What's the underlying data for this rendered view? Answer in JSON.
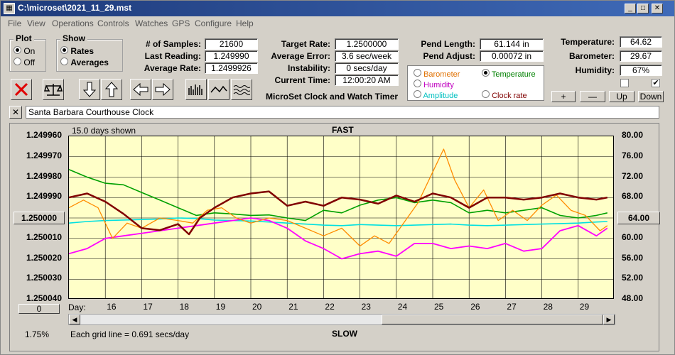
{
  "window": {
    "title": "C:\\microset\\2021_11_29.mst"
  },
  "menu": [
    "File",
    "View",
    "Operations",
    "Controls",
    "Watches",
    "GPS",
    "Configure",
    "Help"
  ],
  "plot_group": {
    "title": "Plot",
    "options": [
      {
        "label": "On",
        "selected": true
      },
      {
        "label": "Off",
        "selected": false
      }
    ]
  },
  "show_group": {
    "title": "Show",
    "options": [
      {
        "label": "Rates",
        "selected": true
      },
      {
        "label": "Averages",
        "selected": false
      }
    ]
  },
  "stats": {
    "samples": {
      "label": "# of Samples:",
      "value": "21600"
    },
    "last_reading": {
      "label": "Last Reading:",
      "value": "1.249990"
    },
    "average_rate": {
      "label": "Average Rate:",
      "value": "1.2499926"
    },
    "target_rate": {
      "label": "Target Rate:",
      "value": "1.2500000"
    },
    "average_error": {
      "label": "Average Error:",
      "value": "3.6 sec/week"
    },
    "instability": {
      "label": "Instability:",
      "value": "0 secs/day"
    },
    "current_time": {
      "label": "Current Time:",
      "value": "12:00:20 AM"
    },
    "pend_length": {
      "label": "Pend Length:",
      "value": "61.144 in"
    },
    "pend_adjust": {
      "label": "Pend Adjust:",
      "value": "0.00072 in"
    },
    "temperature": {
      "label": "Temperature:",
      "value": "64.62"
    },
    "barometer": {
      "label": "Barometer:",
      "value": "29.67"
    },
    "humidity": {
      "label": "Humidity:",
      "value": "67%"
    }
  },
  "app_label": "MicroSet Clock and Watch Timer",
  "series_select": [
    {
      "label": "Barometer",
      "color": "#e07000",
      "selected": false
    },
    {
      "label": "Temperature",
      "color": "#008000",
      "selected": true
    },
    {
      "label": "Humidity",
      "color": "#c000c0",
      "selected": false
    },
    {
      "label": "Clock rate",
      "color": "#800000",
      "selected": false
    },
    {
      "label": "Amplitude",
      "color": "#00c0c0",
      "selected": false
    }
  ],
  "side_buttons": {
    "plus": "+",
    "minus": "—",
    "up": "Up",
    "down": "Down"
  },
  "checkboxes": [
    {
      "checked": false
    },
    {
      "checked": true
    }
  ],
  "clock_name": "Santa Barbara Courthouse Clock",
  "close_glyph": "✕",
  "chart_header": {
    "days_shown": "15.0 days shown",
    "top": "FAST",
    "bottom": "SLOW",
    "grid_note": "Each grid line = 0.691 secs/day",
    "zoom": "1.75%",
    "day_label": "Day:"
  },
  "left_value_button": "1.250000",
  "right_value_button": "64.00",
  "left_zero_button": "0",
  "colors": {
    "plot_bg": "#ffffc8",
    "rate": "#800000",
    "temperature": "#00a000",
    "barometer": "#ff8c00",
    "humidity": "#ff00ff",
    "amplitude": "#00e0e0"
  },
  "chart_data": {
    "type": "line",
    "title": "",
    "y_left_ticks": [
      "1.249960",
      "1.249970",
      "1.249980",
      "1.249990",
      "1.250000",
      "1.250010",
      "1.250020",
      "1.250030",
      "1.250040"
    ],
    "y_right_ticks": [
      "80.00",
      "76.00",
      "72.00",
      "68.00",
      "64.00",
      "60.00",
      "56.00",
      "52.00",
      "48.00"
    ],
    "x_ticks": [
      "16",
      "17",
      "18",
      "19",
      "20",
      "21",
      "22",
      "23",
      "24",
      "25",
      "26",
      "27",
      "28",
      "29"
    ],
    "x_range": [
      15.0,
      30.0
    ],
    "y_left_range": [
      1.24996,
      1.25004
    ],
    "y_right_range": [
      48,
      80
    ],
    "series": [
      {
        "key": "rate",
        "axis": "left",
        "x": [
          15.0,
          15.5,
          16.0,
          16.5,
          17.0,
          17.5,
          18.0,
          18.3,
          18.6,
          19.0,
          19.5,
          20.0,
          20.5,
          21.0,
          21.5,
          22.0,
          22.5,
          23.0,
          23.5,
          24.0,
          24.5,
          25.0,
          25.5,
          26.0,
          26.5,
          27.0,
          27.5,
          28.0,
          28.5,
          29.0,
          29.5,
          29.8
        ],
        "y": [
          1.24999,
          1.249988,
          1.249992,
          1.249998,
          1.250005,
          1.250006,
          1.250003,
          1.250008,
          1.25,
          1.249995,
          1.24999,
          1.249988,
          1.249987,
          1.249994,
          1.249992,
          1.249994,
          1.24999,
          1.249991,
          1.249993,
          1.249989,
          1.249992,
          1.249988,
          1.24999,
          1.249995,
          1.24999,
          1.24999,
          1.249991,
          1.24999,
          1.249988,
          1.24999,
          1.249991,
          1.24999
        ]
      },
      {
        "key": "temperature",
        "axis": "right",
        "x": [
          15.0,
          15.5,
          16.0,
          16.5,
          17.0,
          17.5,
          18.0,
          18.5,
          19.0,
          19.5,
          20.0,
          20.5,
          21.0,
          21.5,
          22.0,
          22.5,
          23.0,
          23.5,
          24.0,
          24.5,
          25.0,
          25.5,
          26.0,
          26.5,
          27.0,
          27.5,
          28.0,
          28.5,
          29.0,
          29.5,
          29.8
        ],
        "y": [
          73.5,
          72.0,
          70.8,
          70.5,
          69.0,
          67.5,
          66.0,
          64.5,
          65.0,
          64.8,
          64.5,
          64.6,
          64.0,
          63.5,
          65.5,
          65.0,
          66.5,
          67.5,
          68.0,
          67.0,
          67.5,
          67.0,
          65.0,
          65.5,
          65.0,
          65.5,
          66.0,
          64.5,
          64.0,
          64.5,
          65.0
        ]
      },
      {
        "key": "barometer",
        "axis": "right",
        "x": [
          15.0,
          15.4,
          15.8,
          16.2,
          16.6,
          17.0,
          17.5,
          18.0,
          18.4,
          18.8,
          19.2,
          19.6,
          20.0,
          20.5,
          21.0,
          21.5,
          22.0,
          22.5,
          23.0,
          23.4,
          23.8,
          24.2,
          24.6,
          25.0,
          25.3,
          25.6,
          26.0,
          26.4,
          26.8,
          27.2,
          27.6,
          28.0,
          28.4,
          28.8,
          29.2,
          29.6,
          29.8
        ],
        "y": [
          66.0,
          67.5,
          66.0,
          60.0,
          63.0,
          62.0,
          64.0,
          63.5,
          63.0,
          65.5,
          66.0,
          64.0,
          63.0,
          64.0,
          63.5,
          62.0,
          60.5,
          62.0,
          58.5,
          60.5,
          59.0,
          63.0,
          67.0,
          73.0,
          77.5,
          71.5,
          66.0,
          69.5,
          63.5,
          65.5,
          63.5,
          66.5,
          68.5,
          65.5,
          64.5,
          61.5,
          62.5
        ]
      },
      {
        "key": "humidity",
        "axis": "right",
        "x": [
          15.0,
          15.5,
          16.0,
          16.5,
          17.0,
          17.5,
          18.0,
          18.5,
          19.0,
          19.5,
          20.0,
          20.5,
          21.0,
          21.5,
          22.0,
          22.5,
          23.0,
          23.5,
          24.0,
          24.5,
          25.0,
          25.5,
          26.0,
          26.5,
          27.0,
          27.5,
          28.0,
          28.5,
          29.0,
          29.5,
          29.8
        ],
        "y": [
          57.0,
          58.0,
          60.0,
          60.5,
          61.0,
          61.5,
          62.0,
          62.5,
          63.0,
          63.5,
          64.0,
          63.5,
          62.0,
          59.5,
          58.0,
          56.0,
          57.0,
          57.5,
          56.5,
          59.0,
          59.0,
          58.0,
          58.5,
          58.0,
          59.0,
          57.5,
          58.0,
          61.5,
          62.5,
          60.5,
          62.0
        ]
      },
      {
        "key": "amplitude",
        "axis": "right",
        "x": [
          15.0,
          15.5,
          16.0,
          16.5,
          17.0,
          17.5,
          18.0,
          18.5,
          19.0,
          19.5,
          20.0,
          20.5,
          21.0,
          21.5,
          22.0,
          22.5,
          23.0,
          23.5,
          24.0,
          24.5,
          25.0,
          25.5,
          26.0,
          26.5,
          27.0,
          27.5,
          28.0,
          28.5,
          29.0,
          29.5,
          29.8
        ],
        "y": [
          63.0,
          63.3,
          63.5,
          63.6,
          63.7,
          63.8,
          64.0,
          63.9,
          63.6,
          63.5,
          63.4,
          63.2,
          63.0,
          62.8,
          62.6,
          62.5,
          62.7,
          62.6,
          62.5,
          62.6,
          62.7,
          62.8,
          62.6,
          62.5,
          62.6,
          62.7,
          62.8,
          62.9,
          63.0,
          63.2,
          63.3
        ]
      }
    ]
  }
}
